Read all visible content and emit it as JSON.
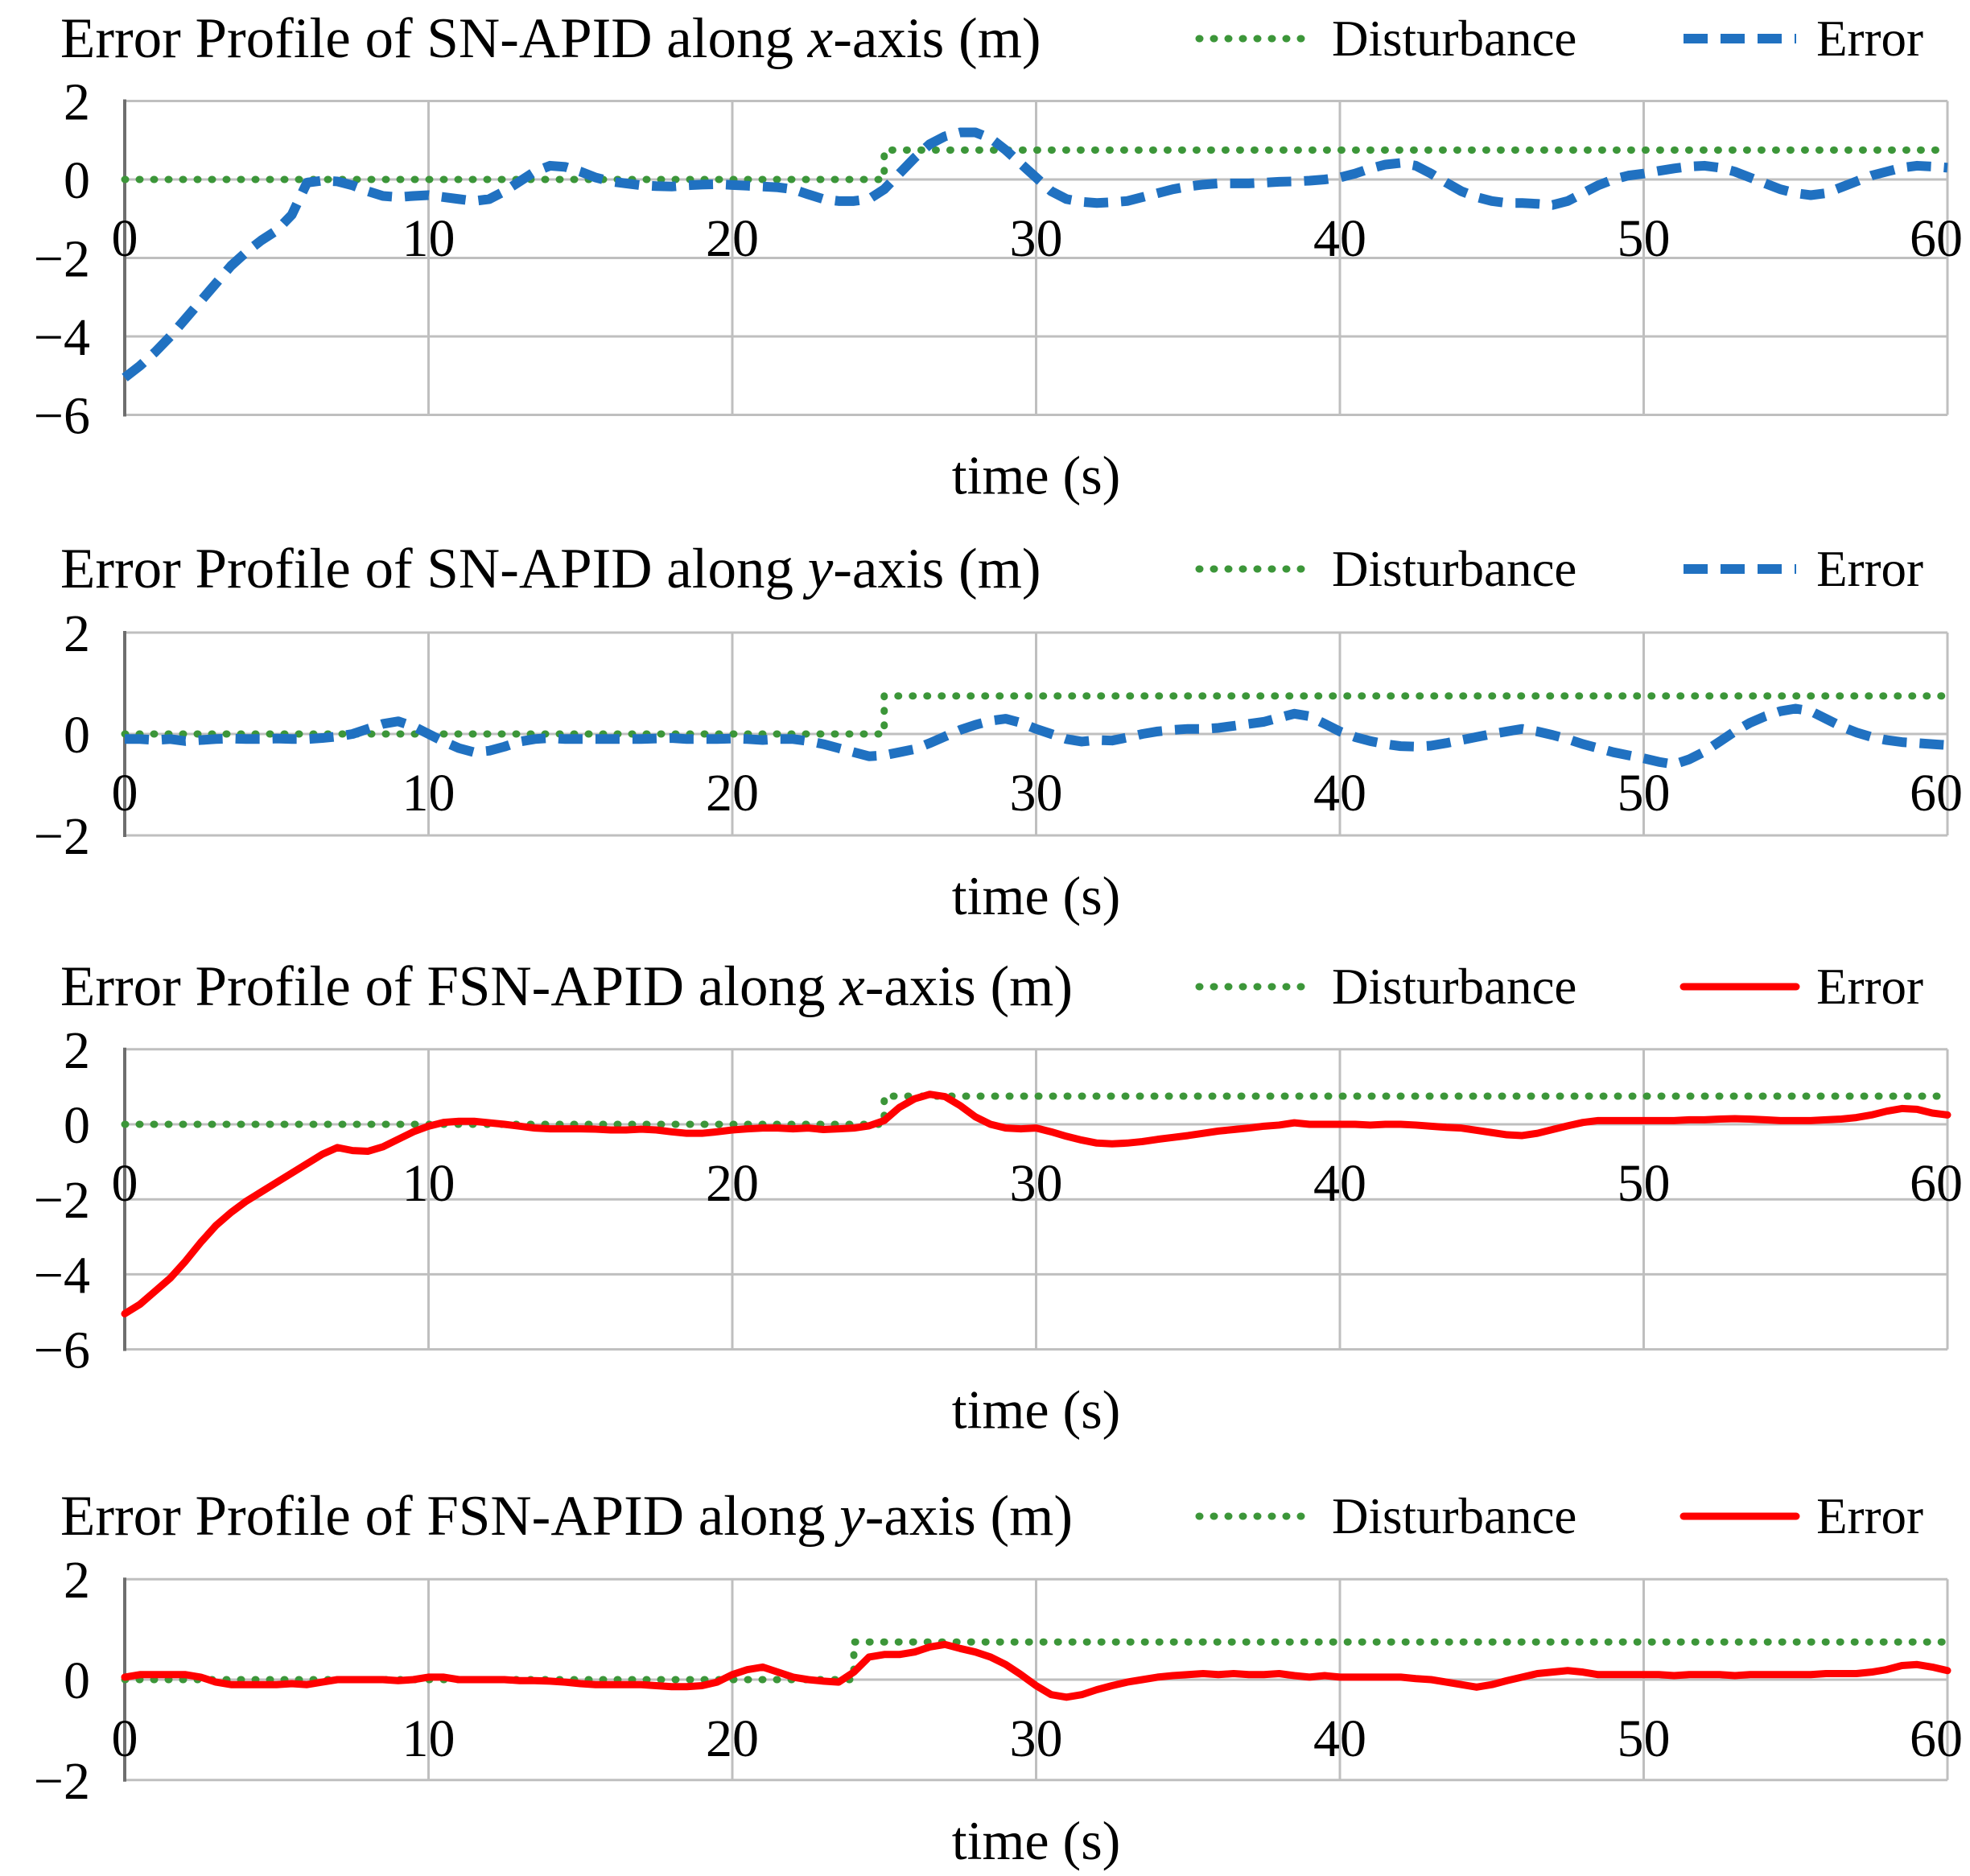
{
  "figure": {
    "background": "#FFFFFF"
  },
  "colors": {
    "disturbance": "#3C9639",
    "error_blue": "#2071C1",
    "error_red": "#FF0000",
    "gridline": "#BFBFBF",
    "axis": "#6E6E6E",
    "text": "#000000"
  },
  "chart_data": [
    {
      "type": "line",
      "title_prefix": "Error Profile of SN-APID along ",
      "axis_letter": "x",
      "title_suffix": "-axis (m)",
      "xlabel": "time (s)",
      "xlim": [
        0,
        60
      ],
      "ylim": [
        -6,
        2
      ],
      "xticks": [
        0,
        10,
        20,
        30,
        40,
        50,
        60
      ],
      "yticks": [
        2,
        0,
        -2,
        -4,
        -6
      ],
      "grid": true,
      "legend_position": "top-right",
      "series": [
        {
          "name": "Disturbance",
          "style": "dotted",
          "color_key": "disturbance",
          "x": [
            0,
            25,
            25,
            60
          ],
          "y": [
            0,
            0,
            0.75,
            0.75
          ]
        },
        {
          "name": "Error",
          "style": "dashed",
          "color_key": "error_blue",
          "dt": 0.5,
          "y": [
            -5.05,
            -4.75,
            -4.4,
            -4.0,
            -3.55,
            -3.1,
            -2.65,
            -2.2,
            -1.85,
            -1.55,
            -1.3,
            -0.9,
            -0.08,
            -0.03,
            -0.05,
            -0.15,
            -0.3,
            -0.42,
            -0.45,
            -0.42,
            -0.4,
            -0.45,
            -0.5,
            -0.55,
            -0.5,
            -0.3,
            -0.05,
            0.2,
            0.35,
            0.32,
            0.2,
            0.05,
            -0.05,
            -0.1,
            -0.15,
            -0.17,
            -0.18,
            -0.15,
            -0.13,
            -0.12,
            -0.14,
            -0.16,
            -0.18,
            -0.2,
            -0.25,
            -0.38,
            -0.5,
            -0.55,
            -0.55,
            -0.5,
            -0.25,
            0.15,
            0.55,
            0.9,
            1.1,
            1.2,
            1.2,
            1.05,
            0.75,
            0.4,
            0.05,
            -0.3,
            -0.5,
            -0.57,
            -0.6,
            -0.58,
            -0.55,
            -0.45,
            -0.35,
            -0.25,
            -0.18,
            -0.13,
            -0.1,
            -0.1,
            -0.1,
            -0.08,
            -0.06,
            -0.05,
            -0.03,
            0.0,
            0.05,
            0.15,
            0.28,
            0.38,
            0.42,
            0.35,
            0.15,
            -0.08,
            -0.3,
            -0.45,
            -0.55,
            -0.6,
            -0.6,
            -0.62,
            -0.65,
            -0.55,
            -0.35,
            -0.15,
            0.0,
            0.1,
            0.15,
            0.22,
            0.28,
            0.33,
            0.35,
            0.3,
            0.2,
            0.05,
            -0.1,
            -0.25,
            -0.35,
            -0.4,
            -0.35,
            -0.2,
            -0.05,
            0.1,
            0.2,
            0.3,
            0.35,
            0.33,
            0.3
          ]
        }
      ]
    },
    {
      "type": "line",
      "title_prefix": "Error Profile of SN-APID along ",
      "axis_letter": "y",
      "title_suffix": "-axis (m)",
      "xlabel": "time (s)",
      "xlim": [
        0,
        60
      ],
      "ylim": [
        -2,
        2
      ],
      "xticks": [
        0,
        10,
        20,
        30,
        40,
        50,
        60
      ],
      "yticks": [
        2,
        0,
        -2
      ],
      "grid": true,
      "legend_position": "top-right",
      "series": [
        {
          "name": "Disturbance",
          "style": "dotted",
          "color_key": "disturbance",
          "x": [
            0,
            25,
            25,
            60
          ],
          "y": [
            0,
            0,
            0.75,
            0.75
          ]
        },
        {
          "name": "Error",
          "style": "dashed",
          "color_key": "error_blue",
          "dt": 0.5,
          "y": [
            -0.1,
            -0.1,
            -0.12,
            -0.1,
            -0.14,
            -0.12,
            -0.1,
            -0.09,
            -0.1,
            -0.1,
            -0.09,
            -0.1,
            -0.1,
            -0.08,
            -0.05,
            0.0,
            0.1,
            0.2,
            0.25,
            0.15,
            0.0,
            -0.15,
            -0.28,
            -0.36,
            -0.33,
            -0.25,
            -0.15,
            -0.1,
            -0.08,
            -0.1,
            -0.1,
            -0.1,
            -0.1,
            -0.1,
            -0.1,
            -0.09,
            -0.08,
            -0.1,
            -0.1,
            -0.1,
            -0.09,
            -0.1,
            -0.12,
            -0.1,
            -0.1,
            -0.14,
            -0.2,
            -0.28,
            -0.36,
            -0.44,
            -0.42,
            -0.36,
            -0.3,
            -0.18,
            -0.05,
            0.08,
            0.18,
            0.26,
            0.3,
            0.22,
            0.1,
            0.0,
            -0.1,
            -0.15,
            -0.12,
            -0.13,
            -0.07,
            0.0,
            0.05,
            0.08,
            0.1,
            0.1,
            0.12,
            0.16,
            0.2,
            0.24,
            0.32,
            0.4,
            0.35,
            0.2,
            0.05,
            -0.06,
            -0.14,
            -0.2,
            -0.24,
            -0.25,
            -0.23,
            -0.18,
            -0.12,
            -0.06,
            0.0,
            0.05,
            0.1,
            0.05,
            -0.02,
            -0.1,
            -0.2,
            -0.28,
            -0.36,
            -0.42,
            -0.48,
            -0.55,
            -0.6,
            -0.5,
            -0.35,
            -0.15,
            0.05,
            0.22,
            0.35,
            0.45,
            0.5,
            0.45,
            0.3,
            0.15,
            0.03,
            -0.06,
            -0.12,
            -0.16,
            -0.18,
            -0.2,
            -0.22
          ]
        }
      ]
    },
    {
      "type": "line",
      "title_prefix": "Error Profile of FSN-APID along ",
      "axis_letter": "x",
      "title_suffix": "-axis (m)",
      "xlabel": "time (s)",
      "xlim": [
        0,
        60
      ],
      "ylim": [
        -6,
        2
      ],
      "xticks": [
        0,
        10,
        20,
        30,
        40,
        50,
        60
      ],
      "yticks": [
        2,
        0,
        -2,
        -4,
        -6
      ],
      "grid": true,
      "legend_position": "top-right",
      "series": [
        {
          "name": "Disturbance",
          "style": "dotted",
          "color_key": "disturbance",
          "x": [
            0,
            25,
            25,
            60
          ],
          "y": [
            0,
            0,
            0.75,
            0.75
          ]
        },
        {
          "name": "Error",
          "style": "solid",
          "color_key": "error_red",
          "dt": 0.5,
          "y": [
            -5.05,
            -4.8,
            -4.45,
            -4.1,
            -3.65,
            -3.15,
            -2.7,
            -2.35,
            -2.05,
            -1.8,
            -1.55,
            -1.3,
            -1.05,
            -0.8,
            -0.62,
            -0.7,
            -0.72,
            -0.6,
            -0.4,
            -0.2,
            -0.05,
            0.05,
            0.08,
            0.08,
            0.04,
            0.0,
            -0.05,
            -0.1,
            -0.12,
            -0.12,
            -0.12,
            -0.13,
            -0.15,
            -0.15,
            -0.13,
            -0.15,
            -0.2,
            -0.24,
            -0.24,
            -0.2,
            -0.15,
            -0.12,
            -0.1,
            -0.1,
            -0.12,
            -0.1,
            -0.14,
            -0.12,
            -0.1,
            -0.04,
            0.1,
            0.45,
            0.68,
            0.8,
            0.74,
            0.5,
            0.2,
            0.0,
            -0.1,
            -0.12,
            -0.1,
            -0.2,
            -0.32,
            -0.42,
            -0.5,
            -0.52,
            -0.5,
            -0.46,
            -0.4,
            -0.35,
            -0.3,
            -0.24,
            -0.18,
            -0.14,
            -0.1,
            -0.05,
            -0.02,
            0.04,
            0.0,
            0.0,
            0.0,
            0.0,
            -0.02,
            0.0,
            0.0,
            -0.02,
            -0.05,
            -0.08,
            -0.1,
            -0.16,
            -0.22,
            -0.28,
            -0.3,
            -0.24,
            -0.14,
            -0.04,
            0.05,
            0.1,
            0.1,
            0.1,
            0.1,
            0.1,
            0.1,
            0.12,
            0.12,
            0.14,
            0.15,
            0.14,
            0.12,
            0.1,
            0.1,
            0.1,
            0.12,
            0.14,
            0.18,
            0.25,
            0.35,
            0.42,
            0.4,
            0.3,
            0.25
          ]
        }
      ]
    },
    {
      "type": "line",
      "title_prefix": "Error Profile of FSN-APID along ",
      "axis_letter": "y",
      "title_suffix": "-axis (m)",
      "xlabel": "time (s)",
      "xlim": [
        0,
        60
      ],
      "ylim": [
        -2,
        2
      ],
      "xticks": [
        0,
        10,
        20,
        30,
        40,
        50,
        60
      ],
      "yticks": [
        2,
        0,
        -2
      ],
      "grid": true,
      "legend_position": "top-right",
      "series": [
        {
          "name": "Disturbance",
          "style": "dotted",
          "color_key": "disturbance",
          "x": [
            0,
            24,
            24,
            60
          ],
          "y": [
            0,
            0,
            0.75,
            0.75
          ]
        },
        {
          "name": "Error",
          "style": "solid",
          "color_key": "error_red",
          "dt": 0.5,
          "y": [
            0.05,
            0.1,
            0.1,
            0.1,
            0.1,
            0.05,
            -0.05,
            -0.1,
            -0.1,
            -0.1,
            -0.1,
            -0.08,
            -0.1,
            -0.05,
            0.0,
            0.0,
            0.0,
            0.0,
            -0.02,
            0.0,
            0.05,
            0.05,
            0.0,
            0.0,
            0.0,
            0.0,
            -0.02,
            -0.02,
            -0.03,
            -0.05,
            -0.08,
            -0.1,
            -0.1,
            -0.1,
            -0.1,
            -0.12,
            -0.14,
            -0.14,
            -0.12,
            -0.05,
            0.1,
            0.2,
            0.25,
            0.15,
            0.05,
            0.0,
            -0.03,
            -0.05,
            0.15,
            0.45,
            0.5,
            0.5,
            0.55,
            0.65,
            0.7,
            0.62,
            0.55,
            0.45,
            0.3,
            0.1,
            -0.12,
            -0.3,
            -0.35,
            -0.3,
            -0.2,
            -0.12,
            -0.05,
            0.0,
            0.05,
            0.08,
            0.1,
            0.12,
            0.1,
            0.12,
            0.1,
            0.1,
            0.12,
            0.08,
            0.05,
            0.08,
            0.05,
            0.05,
            0.05,
            0.05,
            0.05,
            0.02,
            0.0,
            -0.05,
            -0.1,
            -0.15,
            -0.1,
            -0.02,
            0.05,
            0.12,
            0.15,
            0.18,
            0.15,
            0.1,
            0.1,
            0.1,
            0.1,
            0.1,
            0.08,
            0.1,
            0.1,
            0.1,
            0.08,
            0.1,
            0.1,
            0.1,
            0.1,
            0.1,
            0.12,
            0.12,
            0.12,
            0.15,
            0.2,
            0.28,
            0.3,
            0.25,
            0.18
          ]
        }
      ]
    }
  ]
}
